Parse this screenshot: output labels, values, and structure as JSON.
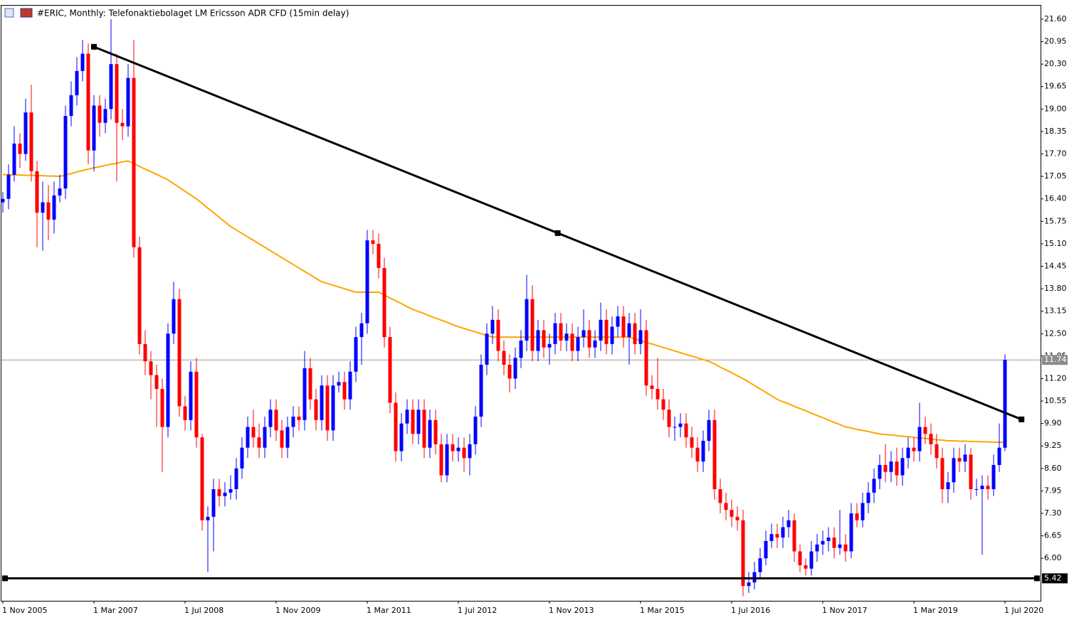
{
  "chart_data": {
    "type": "candlestick",
    "title": "#ERIC, Monthly:  Telefonaktiebolaget LM Ericsson ADR CFD (15min delay)",
    "up_color": "#0000ff",
    "down_color": "#ff0000",
    "categories": [
      "1 Nov 2005",
      null,
      null,
      null,
      null,
      null,
      null,
      null,
      null,
      null,
      null,
      null,
      null,
      null,
      null,
      null,
      "1 Mar 2007",
      null,
      null,
      null,
      null,
      null,
      null,
      null,
      null,
      null,
      null,
      null,
      null,
      null,
      null,
      null,
      "1 Jul 2008",
      null,
      null,
      null,
      null,
      null,
      null,
      null,
      null,
      null,
      null,
      null,
      null,
      null,
      null,
      null,
      "1 Nov 2009",
      null,
      null,
      null,
      null,
      null,
      null,
      null,
      null,
      null,
      null,
      null,
      null,
      null,
      null,
      null,
      "1 Mar 2011",
      null,
      null,
      null,
      null,
      null,
      null,
      null,
      null,
      null,
      null,
      null,
      null,
      null,
      null,
      null,
      "1 Jul 2012",
      null,
      null,
      null,
      null,
      null,
      null,
      null,
      null,
      null,
      null,
      null,
      null,
      null,
      null,
      null,
      "1 Nov 2013",
      null,
      null,
      null,
      null,
      null,
      null,
      null,
      null,
      null,
      null,
      null,
      null,
      null,
      null,
      null,
      "1 Mar 2015",
      null,
      null,
      null,
      null,
      null,
      null,
      null,
      null,
      null,
      null,
      null,
      null,
      null,
      null,
      null,
      "1 Jul 2016",
      null,
      null,
      null,
      null,
      null,
      null,
      null,
      null,
      null,
      null,
      null,
      null,
      null,
      null,
      null,
      "1 Nov 2017",
      null,
      null,
      null,
      null,
      null,
      null,
      null,
      null,
      null,
      null,
      null,
      null,
      null,
      null,
      null,
      "1 Mar 2019",
      null,
      null,
      null,
      null,
      null,
      null,
      null,
      null,
      null,
      null,
      null,
      null,
      null,
      null,
      null,
      "1 Jul 2020"
    ],
    "ohlc": [
      [
        16.3,
        16.6,
        16.0,
        16.4
      ],
      [
        16.4,
        17.4,
        16.1,
        17.1
      ],
      [
        17.1,
        18.5,
        16.9,
        18.0
      ],
      [
        18.0,
        18.3,
        17.3,
        17.7
      ],
      [
        17.7,
        19.3,
        17.5,
        18.9
      ],
      [
        18.9,
        19.7,
        16.9,
        17.2
      ],
      [
        17.2,
        17.5,
        15.0,
        16.0
      ],
      [
        16.0,
        16.9,
        14.9,
        16.3
      ],
      [
        16.3,
        16.8,
        15.2,
        15.8
      ],
      [
        15.8,
        16.9,
        15.4,
        16.5
      ],
      [
        16.5,
        17.1,
        16.3,
        16.7
      ],
      [
        16.7,
        19.1,
        16.4,
        18.8
      ],
      [
        18.8,
        19.8,
        18.5,
        19.4
      ],
      [
        19.4,
        20.5,
        19.1,
        20.1
      ],
      [
        20.1,
        21.0,
        19.8,
        20.6
      ],
      [
        20.6,
        20.9,
        17.4,
        17.8
      ],
      [
        17.8,
        19.4,
        17.2,
        19.1
      ],
      [
        19.1,
        19.4,
        18.2,
        18.6
      ],
      [
        18.6,
        19.3,
        18.3,
        19.0
      ],
      [
        19.0,
        21.6,
        18.7,
        20.3
      ],
      [
        20.3,
        20.6,
        16.9,
        18.6
      ],
      [
        18.6,
        19.0,
        18.1,
        18.5
      ],
      [
        18.5,
        20.3,
        18.2,
        19.9
      ],
      [
        19.9,
        21.0,
        14.7,
        15.0
      ],
      [
        15.0,
        15.3,
        11.9,
        12.2
      ],
      [
        12.2,
        12.6,
        11.3,
        11.7
      ],
      [
        11.7,
        12.0,
        10.6,
        11.3
      ],
      [
        11.3,
        11.6,
        9.8,
        10.9
      ],
      [
        10.9,
        11.2,
        8.5,
        9.8
      ],
      [
        9.8,
        12.8,
        9.5,
        12.5
      ],
      [
        12.5,
        14.0,
        12.2,
        13.5
      ],
      [
        13.5,
        13.8,
        10.1,
        10.4
      ],
      [
        10.4,
        10.7,
        9.7,
        10.0
      ],
      [
        10.0,
        11.7,
        9.7,
        11.4
      ],
      [
        11.4,
        11.8,
        9.2,
        9.5
      ],
      [
        9.5,
        9.6,
        6.8,
        7.1
      ],
      [
        7.1,
        7.5,
        5.6,
        7.2
      ],
      [
        7.2,
        8.3,
        6.2,
        8.0
      ],
      [
        8.0,
        8.3,
        7.5,
        7.8
      ],
      [
        7.8,
        8.2,
        7.5,
        7.9
      ],
      [
        7.9,
        8.4,
        7.7,
        8.0
      ],
      [
        8.0,
        8.9,
        7.7,
        8.6
      ],
      [
        8.6,
        9.5,
        8.3,
        9.2
      ],
      [
        9.2,
        10.1,
        8.9,
        9.8
      ],
      [
        9.8,
        10.3,
        9.2,
        9.5
      ],
      [
        9.5,
        9.9,
        8.9,
        9.2
      ],
      [
        9.2,
        10.1,
        8.9,
        9.8
      ],
      [
        9.8,
        10.6,
        9.5,
        10.3
      ],
      [
        10.3,
        10.6,
        9.4,
        9.7
      ],
      [
        9.7,
        10.0,
        8.9,
        9.2
      ],
      [
        9.2,
        10.1,
        8.9,
        9.8
      ],
      [
        9.8,
        10.4,
        9.5,
        10.1
      ],
      [
        10.1,
        10.4,
        9.7,
        10.0
      ],
      [
        10.0,
        12.0,
        9.7,
        11.5
      ],
      [
        11.5,
        11.8,
        10.3,
        10.6
      ],
      [
        10.6,
        10.9,
        9.7,
        10.0
      ],
      [
        10.0,
        11.3,
        9.7,
        11.0
      ],
      [
        11.0,
        11.3,
        9.4,
        9.7
      ],
      [
        9.7,
        11.3,
        9.4,
        11.0
      ],
      [
        11.0,
        11.4,
        10.8,
        11.1
      ],
      [
        11.1,
        11.4,
        10.3,
        10.6
      ],
      [
        10.6,
        11.7,
        10.3,
        11.4
      ],
      [
        11.4,
        12.7,
        11.1,
        12.4
      ],
      [
        12.4,
        13.1,
        11.6,
        12.8
      ],
      [
        12.8,
        15.5,
        12.5,
        15.2
      ],
      [
        15.2,
        15.5,
        14.8,
        15.1
      ],
      [
        15.1,
        15.4,
        14.1,
        14.4
      ],
      [
        14.4,
        14.7,
        12.1,
        12.4
      ],
      [
        12.4,
        12.7,
        10.2,
        10.5
      ],
      [
        10.5,
        10.8,
        8.8,
        9.1
      ],
      [
        9.1,
        10.2,
        8.8,
        9.9
      ],
      [
        9.9,
        10.6,
        9.6,
        10.3
      ],
      [
        10.3,
        10.6,
        9.3,
        9.6
      ],
      [
        9.6,
        10.6,
        9.3,
        10.3
      ],
      [
        10.3,
        10.6,
        8.9,
        9.2
      ],
      [
        9.2,
        10.3,
        8.9,
        10.0
      ],
      [
        10.0,
        10.3,
        9.0,
        9.3
      ],
      [
        9.3,
        9.6,
        8.2,
        8.4
      ],
      [
        8.4,
        9.6,
        8.2,
        9.3
      ],
      [
        9.3,
        9.6,
        8.8,
        9.1
      ],
      [
        9.1,
        9.5,
        8.8,
        9.2
      ],
      [
        9.2,
        9.5,
        8.5,
        8.9
      ],
      [
        8.9,
        9.6,
        8.4,
        9.3
      ],
      [
        9.3,
        10.4,
        9.0,
        10.1
      ],
      [
        10.1,
        11.9,
        9.8,
        11.6
      ],
      [
        11.6,
        12.8,
        11.3,
        12.5
      ],
      [
        12.5,
        13.3,
        12.2,
        12.9
      ],
      [
        12.9,
        13.2,
        11.7,
        12.0
      ],
      [
        12.0,
        12.3,
        11.3,
        11.6
      ],
      [
        11.6,
        11.9,
        10.8,
        11.2
      ],
      [
        11.2,
        12.1,
        10.9,
        11.8
      ],
      [
        11.8,
        12.6,
        11.5,
        12.3
      ],
      [
        12.3,
        14.2,
        12.0,
        13.5
      ],
      [
        13.5,
        13.9,
        11.7,
        12.0
      ],
      [
        12.0,
        12.9,
        11.7,
        12.6
      ],
      [
        12.6,
        12.9,
        11.8,
        12.1
      ],
      [
        12.1,
        12.5,
        11.6,
        12.2
      ],
      [
        12.2,
        13.1,
        11.9,
        12.8
      ],
      [
        12.8,
        13.1,
        12.0,
        12.3
      ],
      [
        12.3,
        12.8,
        12.0,
        12.5
      ],
      [
        12.5,
        12.8,
        11.7,
        12.0
      ],
      [
        12.0,
        12.7,
        11.7,
        12.4
      ],
      [
        12.4,
        13.2,
        12.1,
        12.6
      ],
      [
        12.6,
        12.9,
        11.8,
        12.1
      ],
      [
        12.1,
        12.6,
        11.8,
        12.3
      ],
      [
        12.3,
        13.4,
        12.0,
        12.9
      ],
      [
        12.9,
        13.2,
        11.9,
        12.2
      ],
      [
        12.2,
        13.0,
        11.9,
        12.7
      ],
      [
        12.7,
        13.3,
        12.4,
        13.0
      ],
      [
        13.0,
        13.3,
        12.1,
        12.4
      ],
      [
        12.4,
        13.1,
        11.6,
        12.8
      ],
      [
        12.8,
        13.1,
        11.9,
        12.2
      ],
      [
        12.2,
        13.2,
        11.9,
        12.6
      ],
      [
        12.6,
        12.9,
        10.7,
        11.0
      ],
      [
        11.0,
        11.3,
        10.6,
        10.9
      ],
      [
        10.9,
        11.8,
        10.3,
        10.6
      ],
      [
        10.6,
        10.9,
        10.0,
        10.3
      ],
      [
        10.3,
        10.6,
        9.5,
        9.8
      ],
      [
        9.8,
        10.1,
        9.4,
        9.8
      ],
      [
        9.8,
        10.2,
        9.5,
        9.9
      ],
      [
        9.9,
        10.2,
        9.2,
        9.5
      ],
      [
        9.5,
        9.8,
        8.9,
        9.2
      ],
      [
        9.2,
        9.5,
        8.5,
        8.8
      ],
      [
        8.8,
        9.7,
        8.5,
        9.4
      ],
      [
        9.4,
        10.3,
        9.1,
        10.0
      ],
      [
        10.0,
        10.3,
        7.7,
        8.0
      ],
      [
        8.0,
        8.3,
        7.3,
        7.6
      ],
      [
        7.6,
        7.9,
        7.1,
        7.4
      ],
      [
        7.4,
        7.7,
        6.9,
        7.2
      ],
      [
        7.2,
        7.5,
        6.8,
        7.1
      ],
      [
        7.1,
        7.4,
        4.9,
        5.2
      ],
      [
        5.2,
        5.6,
        5.0,
        5.3
      ],
      [
        5.3,
        5.9,
        5.1,
        5.6
      ],
      [
        5.6,
        6.3,
        5.4,
        6.0
      ],
      [
        6.0,
        6.8,
        5.8,
        6.5
      ],
      [
        6.5,
        7.0,
        6.3,
        6.7
      ],
      [
        6.7,
        7.0,
        6.3,
        6.6
      ],
      [
        6.6,
        7.2,
        6.3,
        6.9
      ],
      [
        6.9,
        7.4,
        6.6,
        7.1
      ],
      [
        7.1,
        7.3,
        5.9,
        6.2
      ],
      [
        6.2,
        6.4,
        5.6,
        5.8
      ],
      [
        5.8,
        6.0,
        5.5,
        5.7
      ],
      [
        5.7,
        6.5,
        5.5,
        6.2
      ],
      [
        6.2,
        6.7,
        5.9,
        6.4
      ],
      [
        6.4,
        6.8,
        6.1,
        6.5
      ],
      [
        6.5,
        6.9,
        6.2,
        6.6
      ],
      [
        6.6,
        6.9,
        6.0,
        6.3
      ],
      [
        6.3,
        7.4,
        6.1,
        6.4
      ],
      [
        6.4,
        6.7,
        5.9,
        6.2
      ],
      [
        6.2,
        7.6,
        6.0,
        7.3
      ],
      [
        7.3,
        7.6,
        6.9,
        7.1
      ],
      [
        7.1,
        7.9,
        6.9,
        7.6
      ],
      [
        7.6,
        8.2,
        7.3,
        7.9
      ],
      [
        7.9,
        8.6,
        7.6,
        8.3
      ],
      [
        8.3,
        9.0,
        8.0,
        8.7
      ],
      [
        8.7,
        9.3,
        8.2,
        8.5
      ],
      [
        8.5,
        9.1,
        8.2,
        8.8
      ],
      [
        8.8,
        9.2,
        8.1,
        8.4
      ],
      [
        8.4,
        9.2,
        8.1,
        8.9
      ],
      [
        8.9,
        9.5,
        8.6,
        9.2
      ],
      [
        9.2,
        9.5,
        8.8,
        9.1
      ],
      [
        9.1,
        10.5,
        8.8,
        9.8
      ],
      [
        9.8,
        10.1,
        9.3,
        9.6
      ],
      [
        9.6,
        9.9,
        9.0,
        9.3
      ],
      [
        9.3,
        9.6,
        8.6,
        8.9
      ],
      [
        8.9,
        9.2,
        7.6,
        8.0
      ],
      [
        8.0,
        8.5,
        7.6,
        8.2
      ],
      [
        8.2,
        9.2,
        7.9,
        8.9
      ],
      [
        8.9,
        9.2,
        8.5,
        8.8
      ],
      [
        8.8,
        9.3,
        8.5,
        9.0
      ],
      [
        9.0,
        9.2,
        7.7,
        8.0
      ],
      [
        8.0,
        8.3,
        7.8,
        8.0
      ],
      [
        8.0,
        8.4,
        6.1,
        8.1
      ],
      [
        8.1,
        8.4,
        7.7,
        8.0
      ],
      [
        8.0,
        9.0,
        7.8,
        8.7
      ],
      [
        8.7,
        9.9,
        8.5,
        9.2
      ],
      [
        9.2,
        11.9,
        9.1,
        11.74
      ]
    ],
    "ma": {
      "color": "#ffa500",
      "values": [
        17.1,
        17.1,
        17.09,
        17.09,
        17.08,
        17.08,
        17.07,
        17.07,
        17.06,
        17.06,
        17.05,
        17.09,
        17.13,
        17.18,
        17.22,
        17.26,
        17.3,
        17.33,
        17.37,
        17.4,
        17.43,
        17.47,
        17.5,
        17.42,
        17.34,
        17.26,
        17.19,
        17.11,
        17.03,
        16.95,
        16.84,
        16.73,
        16.62,
        16.51,
        16.4,
        16.27,
        16.13,
        16.0,
        15.87,
        15.73,
        15.6,
        15.5,
        15.4,
        15.3,
        15.2,
        15.1,
        15.0,
        14.9,
        14.8,
        14.7,
        14.6,
        14.5,
        14.4,
        14.3,
        14.2,
        14.1,
        14.0,
        13.95,
        13.9,
        13.85,
        13.8,
        13.75,
        13.7,
        13.7,
        13.7,
        13.7,
        13.7,
        13.62,
        13.53,
        13.45,
        13.37,
        13.28,
        13.2,
        13.14,
        13.08,
        13.01,
        12.95,
        12.89,
        12.83,
        12.76,
        12.7,
        12.65,
        12.6,
        12.55,
        12.5,
        12.45,
        12.4,
        12.4,
        12.4,
        12.4,
        12.4,
        12.4,
        12.4,
        12.4,
        12.4,
        12.4,
        12.4,
        12.4,
        12.4,
        12.4,
        12.4,
        12.4,
        12.4,
        12.4,
        12.4,
        12.4,
        12.4,
        12.4,
        12.4,
        12.4,
        12.4,
        12.35,
        12.3,
        12.25,
        12.2,
        12.15,
        12.1,
        12.05,
        12.0,
        11.95,
        11.9,
        11.85,
        11.8,
        11.75,
        11.7,
        11.62,
        11.53,
        11.45,
        11.37,
        11.28,
        11.2,
        11.1,
        11.0,
        10.9,
        10.8,
        10.7,
        10.6,
        10.53,
        10.47,
        10.4,
        10.33,
        10.27,
        10.2,
        10.13,
        10.07,
        10.0,
        9.93,
        9.87,
        9.8,
        9.77,
        9.73,
        9.7,
        9.67,
        9.63,
        9.6,
        9.58,
        9.57,
        9.55,
        9.53,
        9.52,
        9.5,
        9.48,
        9.47,
        9.45,
        9.43,
        9.42,
        9.4,
        9.4,
        9.39,
        9.39,
        9.38,
        9.38,
        9.37,
        9.37,
        9.36,
        9.36,
        9.35
      ]
    },
    "trendline": {
      "color": "#000000",
      "points": [
        [
          16,
          20.8
        ],
        [
          178.9,
          10.02
        ]
      ]
    },
    "hline": {
      "color": "#000000",
      "value": 5.42
    },
    "ylim": [
      4.77,
      21.99
    ],
    "yticks": [
      {
        "value": 21.6,
        "label": "21.60"
      },
      20.95,
      {
        "value": 20.3,
        "label": "20.30"
      },
      19.65,
      {
        "value": 19.0,
        "label": "19.00"
      },
      18.35,
      {
        "value": 17.7,
        "label": "17.70"
      },
      17.05,
      {
        "value": 16.4,
        "label": "16.40"
      },
      15.75,
      {
        "value": 15.1,
        "label": "15.10"
      },
      14.45,
      {
        "value": 13.8,
        "label": "13.80"
      },
      13.15,
      {
        "value": 12.5,
        "label": "12.50"
      },
      11.85,
      {
        "value": 11.2,
        "label": "11.20"
      },
      10.55,
      {
        "value": 9.9,
        "label": "9.90"
      },
      9.25,
      {
        "value": 8.6,
        "label": "8.60"
      },
      7.95,
      {
        "value": 7.3,
        "label": "7.30"
      },
      6.65,
      {
        "value": 6.0,
        "label": "6.00"
      }
    ],
    "grid": false
  }
}
